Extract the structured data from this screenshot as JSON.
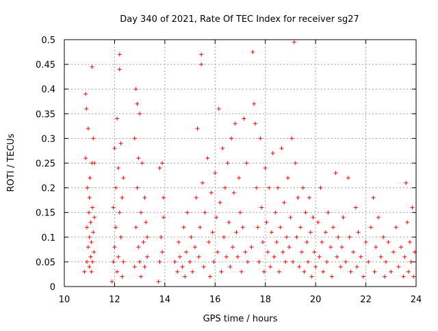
{
  "chart_data": {
    "type": "scatter",
    "title": "Day 340 of 2021, Rate Of TEC Index for receiver sg27",
    "xlabel": "GPS time / hours",
    "ylabel": "ROTI / TECUs",
    "xlim": [
      10,
      24
    ],
    "ylim": [
      0,
      0.5
    ],
    "xticks": [
      10,
      12,
      14,
      16,
      18,
      20,
      22,
      24
    ],
    "xtick_labels": [
      "10",
      "12",
      "14",
      "16",
      "18",
      "20",
      "22",
      "24"
    ],
    "yticks": [
      0,
      0.05,
      0.1,
      0.15,
      0.2,
      0.25,
      0.3,
      0.35,
      0.4,
      0.45,
      0.5
    ],
    "ytick_labels": [
      "0",
      "0.05",
      "0.1",
      "0.15",
      "0.2",
      "0.25",
      "0.3",
      "0.35",
      "0.4",
      "0.45",
      "0.5"
    ],
    "grid": true,
    "marker": "+",
    "color": "#ff0000",
    "series": [
      {
        "points": [
          [
            10.8,
            0.03
          ],
          [
            10.85,
            0.26
          ],
          [
            10.85,
            0.39
          ],
          [
            10.88,
            0.36
          ],
          [
            10.9,
            0.05
          ],
          [
            10.9,
            0.12
          ],
          [
            10.92,
            0.2
          ],
          [
            10.95,
            0.08
          ],
          [
            10.95,
            0.32
          ],
          [
            10.98,
            0.15
          ],
          [
            11.0,
            0.04
          ],
          [
            11.0,
            0.1
          ],
          [
            11.0,
            0.18
          ],
          [
            11.02,
            0.22
          ],
          [
            11.05,
            0.06
          ],
          [
            11.05,
            0.13
          ],
          [
            11.08,
            0.03
          ],
          [
            11.08,
            0.09
          ],
          [
            11.1,
            0.445
          ],
          [
            11.1,
            0.25
          ],
          [
            11.12,
            0.05
          ],
          [
            11.12,
            0.16
          ],
          [
            11.15,
            0.3
          ],
          [
            11.15,
            0.11
          ],
          [
            11.18,
            0.07
          ],
          [
            11.2,
            0.25
          ],
          [
            11.2,
            0.14
          ],
          [
            11.9,
            0.01
          ],
          [
            11.95,
            0.05
          ],
          [
            11.95,
            0.16
          ],
          [
            12.0,
            0.28
          ],
          [
            12.0,
            0.08
          ],
          [
            12.05,
            0.2
          ],
          [
            12.05,
            0.12
          ],
          [
            12.1,
            0.03
          ],
          [
            12.1,
            0.34
          ],
          [
            12.15,
            0.06
          ],
          [
            12.15,
            0.24
          ],
          [
            12.2,
            0.47
          ],
          [
            12.2,
            0.44
          ],
          [
            12.2,
            0.15
          ],
          [
            12.25,
            0.1
          ],
          [
            12.25,
            0.29
          ],
          [
            12.3,
            0.18
          ],
          [
            12.3,
            0.02
          ],
          [
            12.35,
            0.05
          ],
          [
            12.35,
            0.22
          ],
          [
            12.8,
            0.04
          ],
          [
            12.8,
            0.3
          ],
          [
            12.85,
            0.4
          ],
          [
            12.85,
            0.12
          ],
          [
            12.9,
            0.37
          ],
          [
            12.9,
            0.2
          ],
          [
            12.95,
            0.08
          ],
          [
            12.95,
            0.26
          ],
          [
            13.0,
            0.05
          ],
          [
            13.0,
            0.35
          ],
          [
            13.05,
            0.15
          ],
          [
            13.05,
            0.02
          ],
          [
            13.1,
            0.25
          ],
          [
            13.15,
            0.09
          ],
          [
            13.2,
            0.18
          ],
          [
            13.2,
            0.04
          ],
          [
            13.25,
            0.13
          ],
          [
            13.3,
            0.06
          ],
          [
            13.3,
            0.1
          ],
          [
            13.75,
            0.01
          ],
          [
            13.8,
            0.05
          ],
          [
            13.8,
            0.24
          ],
          [
            13.85,
            0.1
          ],
          [
            13.9,
            0.25
          ],
          [
            13.9,
            0.07
          ],
          [
            13.95,
            0.18
          ],
          [
            13.95,
            0.14
          ],
          [
            14.4,
            0.05
          ],
          [
            14.5,
            0.03
          ],
          [
            14.55,
            0.09
          ],
          [
            14.6,
            0.06
          ],
          [
            14.7,
            0.04
          ],
          [
            14.75,
            0.12
          ],
          [
            14.8,
            0.02
          ],
          [
            14.85,
            0.07
          ],
          [
            14.9,
            0.15
          ],
          [
            15.0,
            0.05
          ],
          [
            15.05,
            0.1
          ],
          [
            15.1,
            0.03
          ],
          [
            15.2,
            0.08
          ],
          [
            15.25,
            0.18
          ],
          [
            15.3,
            0.32
          ],
          [
            15.35,
            0.06
          ],
          [
            15.4,
            0.12
          ],
          [
            15.45,
            0.45
          ],
          [
            15.45,
            0.47
          ],
          [
            15.5,
            0.21
          ],
          [
            15.55,
            0.04
          ],
          [
            15.6,
            0.15
          ],
          [
            15.7,
            0.26
          ],
          [
            15.75,
            0.09
          ],
          [
            15.8,
            0.02
          ],
          [
            15.85,
            0.19
          ],
          [
            15.9,
            0.11
          ],
          [
            15.95,
            0.05
          ],
          [
            16.0,
            0.23
          ],
          [
            16.05,
            0.14
          ],
          [
            16.1,
            0.07
          ],
          [
            16.15,
            0.36
          ],
          [
            16.2,
            0.17
          ],
          [
            16.25,
            0.03
          ],
          [
            16.3,
            0.28
          ],
          [
            16.35,
            0.1
          ],
          [
            16.4,
            0.2
          ],
          [
            16.45,
            0.06
          ],
          [
            16.5,
            0.25
          ],
          [
            16.55,
            0.13
          ],
          [
            16.6,
            0.04
          ],
          [
            16.65,
            0.3
          ],
          [
            16.7,
            0.08
          ],
          [
            16.75,
            0.19
          ],
          [
            16.8,
            0.33
          ],
          [
            16.85,
            0.11
          ],
          [
            16.9,
            0.06
          ],
          [
            16.95,
            0.22
          ],
          [
            17.0,
            0.15
          ],
          [
            17.05,
            0.03
          ],
          [
            17.1,
            0.12
          ],
          [
            17.15,
            0.34
          ],
          [
            17.2,
            0.07
          ],
          [
            17.25,
            0.25
          ],
          [
            17.3,
            0.05
          ],
          [
            17.45,
            0.08
          ],
          [
            17.5,
            0.475
          ],
          [
            17.55,
            0.37
          ],
          [
            17.6,
            0.33
          ],
          [
            17.65,
            0.2
          ],
          [
            17.7,
            0.12
          ],
          [
            17.75,
            0.05
          ],
          [
            17.8,
            0.3
          ],
          [
            17.85,
            0.16
          ],
          [
            17.9,
            0.09
          ],
          [
            17.95,
            0.03
          ],
          [
            18.0,
            0.24
          ],
          [
            18.05,
            0.13
          ],
          [
            18.1,
            0.07
          ],
          [
            18.15,
            0.2
          ],
          [
            18.2,
            0.04
          ],
          [
            18.25,
            0.11
          ],
          [
            18.3,
            0.27
          ],
          [
            18.35,
            0.06
          ],
          [
            18.4,
            0.15
          ],
          [
            18.45,
            0.09
          ],
          [
            18.5,
            0.2
          ],
          [
            18.55,
            0.03
          ],
          [
            18.6,
            0.12
          ],
          [
            18.65,
            0.28
          ],
          [
            18.7,
            0.07
          ],
          [
            18.75,
            0.17
          ],
          [
            18.8,
            0.05
          ],
          [
            18.85,
            0.1
          ],
          [
            18.9,
            0.22
          ],
          [
            18.95,
            0.08
          ],
          [
            19.0,
            0.14
          ],
          [
            19.05,
            0.3
          ],
          [
            19.1,
            0.05
          ],
          [
            19.15,
            0.495
          ],
          [
            19.2,
            0.25
          ],
          [
            19.25,
            0.1
          ],
          [
            19.3,
            0.18
          ],
          [
            19.35,
            0.04
          ],
          [
            19.4,
            0.12
          ],
          [
            19.45,
            0.07
          ],
          [
            19.5,
            0.2
          ],
          [
            19.55,
            0.03
          ],
          [
            19.6,
            0.15
          ],
          [
            19.65,
            0.09
          ],
          [
            19.7,
            0.05
          ],
          [
            19.75,
            0.18
          ],
          [
            19.8,
            0.11
          ],
          [
            19.85,
            0.02
          ],
          [
            19.9,
            0.14
          ],
          [
            19.95,
            0.07
          ],
          [
            20.0,
            0.04
          ],
          [
            20.1,
            0.13
          ],
          [
            20.15,
            0.06
          ],
          [
            20.2,
            0.2
          ],
          [
            20.25,
            0.09
          ],
          [
            20.3,
            0.03
          ],
          [
            20.4,
            0.11
          ],
          [
            20.45,
            0.05
          ],
          [
            20.5,
            0.15
          ],
          [
            20.6,
            0.08
          ],
          [
            20.65,
            0.02
          ],
          [
            20.7,
            0.12
          ],
          [
            20.8,
            0.23
          ],
          [
            20.85,
            0.06
          ],
          [
            20.9,
            0.1
          ],
          [
            21.0,
            0.04
          ],
          [
            21.05,
            0.08
          ],
          [
            21.1,
            0.14
          ],
          [
            21.2,
            0.05
          ],
          [
            21.3,
            0.22
          ],
          [
            21.35,
            0.1
          ],
          [
            21.4,
            0.03
          ],
          [
            21.5,
            0.07
          ],
          [
            21.6,
            0.16
          ],
          [
            21.65,
            0.04
          ],
          [
            21.7,
            0.11
          ],
          [
            21.8,
            0.06
          ],
          [
            21.9,
            0.02
          ],
          [
            22.0,
            0.09
          ],
          [
            22.1,
            0.05
          ],
          [
            22.2,
            0.12
          ],
          [
            22.3,
            0.18
          ],
          [
            22.35,
            0.03
          ],
          [
            22.4,
            0.08
          ],
          [
            22.5,
            0.14
          ],
          [
            22.6,
            0.06
          ],
          [
            22.7,
            0.1
          ],
          [
            22.75,
            0.02
          ],
          [
            22.8,
            0.05
          ],
          [
            22.9,
            0.09
          ],
          [
            23.0,
            0.03
          ],
          [
            23.1,
            0.07
          ],
          [
            23.2,
            0.12
          ],
          [
            23.3,
            0.04
          ],
          [
            23.4,
            0.08
          ],
          [
            23.5,
            0.02
          ],
          [
            23.55,
            0.06
          ],
          [
            23.6,
            0.21
          ],
          [
            23.65,
            0.13
          ],
          [
            23.7,
            0.03
          ],
          [
            23.75,
            0.09
          ],
          [
            23.8,
            0.05
          ],
          [
            23.85,
            0.16
          ],
          [
            23.9,
            0.02
          ],
          [
            23.95,
            0.07
          ]
        ]
      }
    ]
  }
}
